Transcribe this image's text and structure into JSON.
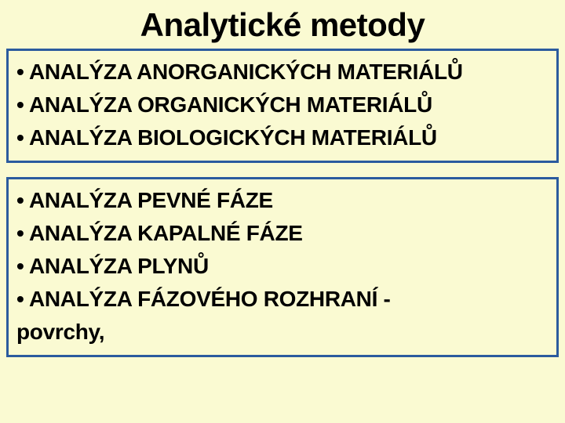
{
  "slide": {
    "title": "Analytické metody",
    "background_color": "#fafad2",
    "title_fontsize": 42,
    "bullet_fontsize": 28,
    "bullet_symbol": "•",
    "box1": {
      "border_color": "#2b5b9e",
      "items": [
        "ANALÝZA ANORGANICKÝCH MATERIÁLŮ",
        "ANALÝZA ORGANICKÝCH MATERIÁLŮ",
        "ANALÝZA BIOLOGICKÝCH MATERIÁLŮ"
      ]
    },
    "box2": {
      "border_color": "#2b5b9e",
      "items": [
        "ANALÝZA PEVNÉ FÁZE",
        "ANALÝZA KAPALNÉ FÁZE",
        "ANALÝZA PLYNŮ",
        "ANALÝZA FÁZOVÉHO ROZHRANÍ -"
      ],
      "trailing_text": "povrchy,"
    }
  }
}
